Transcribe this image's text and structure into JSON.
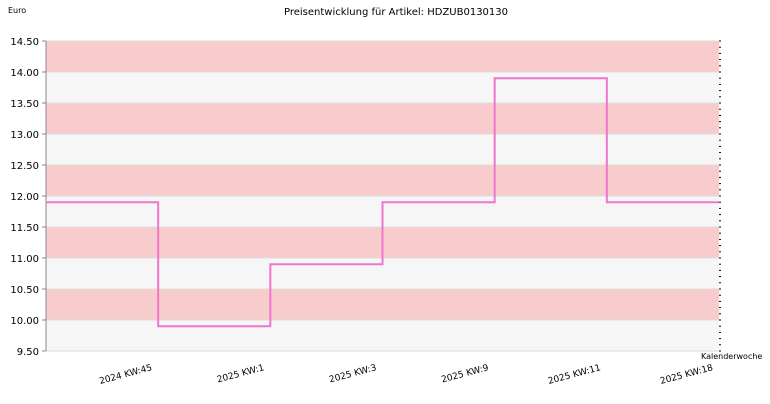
{
  "chart_data": {
    "type": "line",
    "step": true,
    "title": "Preisentwicklung für Artikel: HDZUB0130130",
    "ylabel": "Euro",
    "xlabel": "Kalenderwoche",
    "ylim": [
      9.5,
      14.5
    ],
    "yticks": [
      "9.50",
      "10.00",
      "10.50",
      "11.00",
      "11.50",
      "12.00",
      "12.50",
      "13.00",
      "13.50",
      "14.00",
      "14.50"
    ],
    "categories": [
      "2024 KW:45",
      "2025 KW:1",
      "2025 KW:3",
      "2025 KW:9",
      "2025 KW:11",
      "2025 KW:18"
    ],
    "series": [
      {
        "values": [
          11.9,
          9.9,
          10.9,
          11.9,
          13.9,
          11.9
        ]
      }
    ],
    "colors": {
      "line": "#ee77cc",
      "band_a": "#f8cccc",
      "band_b": "#f6f6f6",
      "grid": "#dddddd",
      "axis": "#888888"
    },
    "grid": true,
    "legend": "none"
  }
}
